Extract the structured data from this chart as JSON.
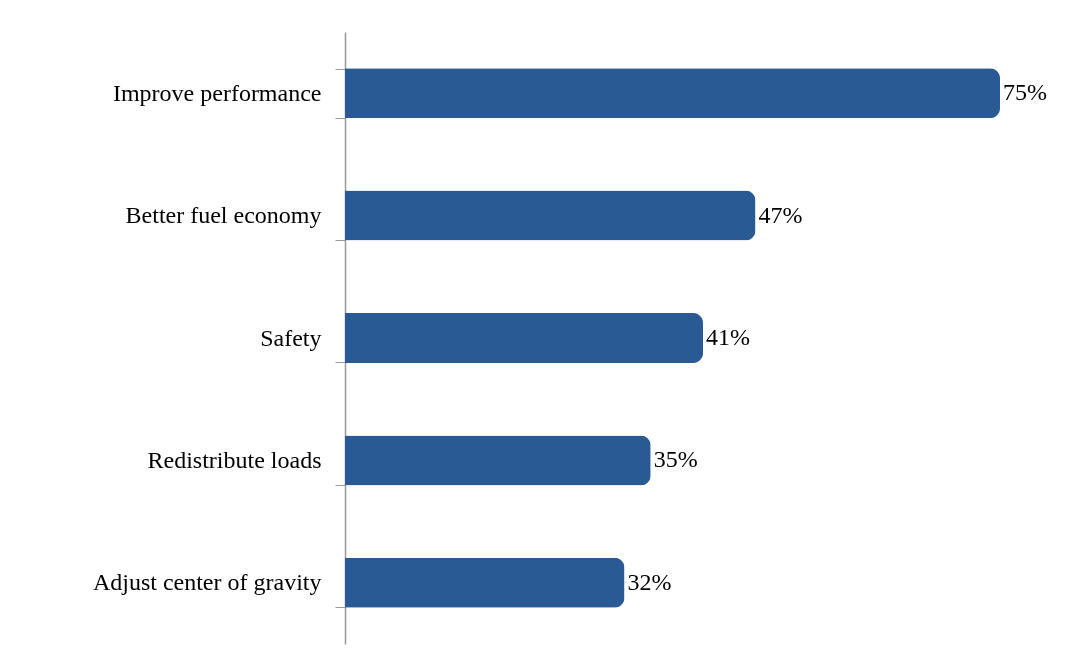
{
  "chart_data": {
    "type": "bar",
    "orientation": "horizontal",
    "categories": [
      "Improve performance",
      "Better fuel economy",
      "Safety",
      "Redistribute loads",
      "Adjust center of gravity"
    ],
    "values": [
      75,
      47,
      41,
      35,
      32
    ],
    "value_labels": [
      "75%",
      "47%",
      "41%",
      "35%",
      "32%"
    ],
    "color": "#2a5a94"
  }
}
